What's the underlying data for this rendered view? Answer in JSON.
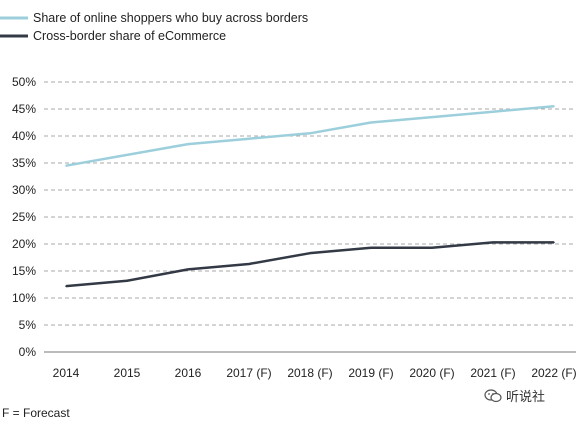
{
  "chart_data": {
    "type": "line",
    "categories": [
      "2014",
      "2015",
      "2016",
      "2017 (F)",
      "2018 (F)",
      "2019 (F)",
      "2020 (F)",
      "2021 (F)",
      "2022 (F)"
    ],
    "series": [
      {
        "name": "Share of online shoppers who buy across borders",
        "color": "#9ccfdb",
        "values": [
          34.5,
          36.5,
          38.5,
          39.5,
          40.5,
          42.5,
          43.5,
          44.5,
          45.5
        ]
      },
      {
        "name": "Cross-border share of eCommerce",
        "color": "#333a45",
        "values": [
          12.2,
          13.2,
          15.3,
          16.3,
          18.3,
          19.3,
          19.3,
          20.3,
          20.3
        ]
      }
    ],
    "ylim": [
      0,
      50
    ],
    "yticks": [
      "0%",
      "5%",
      "10%",
      "15%",
      "20%",
      "25%",
      "30%",
      "35%",
      "40%",
      "45%",
      "50%"
    ],
    "grid": "dashed horizontal",
    "legend": "top-left"
  },
  "footnote": "F = Forecast",
  "watermark": "听说社"
}
